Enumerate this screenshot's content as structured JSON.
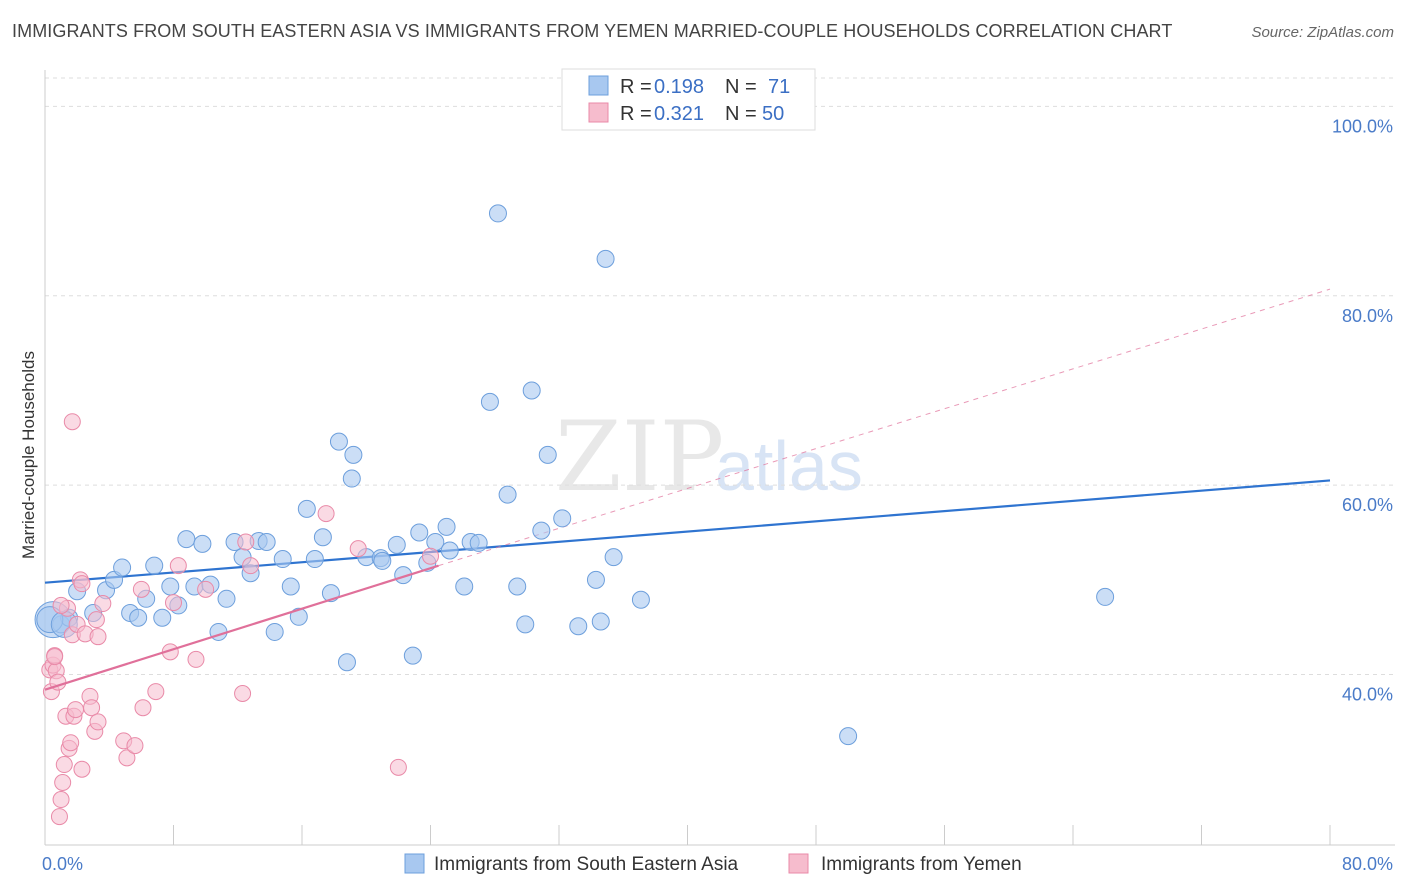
{
  "title": "IMMIGRANTS FROM SOUTH EASTERN ASIA VS IMMIGRANTS FROM YEMEN MARRIED-COUPLE HOUSEHOLDS CORRELATION CHART",
  "source": "Source: ZipAtlas.com",
  "watermark": {
    "zip": "ZIP",
    "atlas": "atlas"
  },
  "colors": {
    "blue_fill": "#a8c8f0",
    "blue_stroke": "#6d9fdc",
    "blue_line": "#2f74d0",
    "pink_fill": "#f6bccd",
    "pink_stroke": "#e98aa8",
    "pink_line": "#e0709a",
    "grid": "#dddddd",
    "tick_text": "#4a7bc8"
  },
  "legend": {
    "rows": [
      {
        "r_label": "R = ",
        "r_value": "0.198",
        "n_label": "N = ",
        "n_value": "71"
      },
      {
        "r_label": "R = ",
        "r_value": "0.321",
        "n_label": "N = ",
        "n_value": "50"
      }
    ]
  },
  "bottom_legend": [
    "Immigrants from South Eastern Asia",
    "Immigrants from Yemen"
  ],
  "chart_data": {
    "type": "scatter",
    "title": "IMMIGRANTS FROM SOUTH EASTERN ASIA VS IMMIGRANTS FROM YEMEN MARRIED-COUPLE HOUSEHOLDS CORRELATION CHART",
    "xlabel": "",
    "ylabel": "Married-couple Households",
    "xlim": [
      0,
      80
    ],
    "ylim": [
      22,
      103
    ],
    "x_tick_labels": [
      {
        "value": 0,
        "label": "0.0%"
      },
      {
        "value": 80,
        "label": "80.0%"
      }
    ],
    "y_tick_labels": [
      {
        "value": 100,
        "label": "100.0%"
      },
      {
        "value": 80,
        "label": "80.0%"
      },
      {
        "value": 60,
        "label": "60.0%"
      },
      {
        "value": 40,
        "label": "40.0%"
      }
    ],
    "series": [
      {
        "name": "Immigrants from South Eastern Asia",
        "R": 0.198,
        "N": 71,
        "trend": {
          "x": [
            0,
            80
          ],
          "y": [
            49.7,
            60.5
          ],
          "style": "solid"
        },
        "points": [
          [
            0.5,
            45.8
          ],
          [
            1.0,
            45.3
          ],
          [
            1.5,
            46.0
          ],
          [
            2.0,
            48.8
          ],
          [
            3.0,
            46.5
          ],
          [
            3.8,
            48.9
          ],
          [
            4.3,
            50.0
          ],
          [
            4.8,
            51.3
          ],
          [
            5.3,
            46.5
          ],
          [
            5.8,
            46.0
          ],
          [
            6.3,
            48.0
          ],
          [
            6.8,
            51.5
          ],
          [
            7.3,
            46.0
          ],
          [
            7.8,
            49.3
          ],
          [
            8.3,
            47.3
          ],
          [
            8.8,
            54.3
          ],
          [
            9.3,
            49.3
          ],
          [
            9.8,
            53.8
          ],
          [
            10.3,
            49.5
          ],
          [
            10.8,
            44.5
          ],
          [
            11.3,
            48.0
          ],
          [
            11.8,
            54.0
          ],
          [
            12.3,
            52.4
          ],
          [
            12.8,
            50.7
          ],
          [
            13.3,
            54.1
          ],
          [
            13.8,
            54.0
          ],
          [
            14.3,
            44.5
          ],
          [
            14.8,
            52.2
          ],
          [
            15.3,
            49.3
          ],
          [
            15.8,
            46.1
          ],
          [
            16.3,
            57.5
          ],
          [
            16.8,
            52.2
          ],
          [
            17.3,
            54.5
          ],
          [
            17.8,
            48.6
          ],
          [
            18.3,
            64.6
          ],
          [
            18.8,
            41.3
          ],
          [
            19.1,
            60.7
          ],
          [
            19.2,
            63.2
          ],
          [
            20.0,
            52.4
          ],
          [
            20.9,
            52.3
          ],
          [
            21.0,
            52.0
          ],
          [
            21.9,
            53.7
          ],
          [
            22.3,
            50.5
          ],
          [
            22.9,
            42.0
          ],
          [
            23.3,
            55.0
          ],
          [
            23.8,
            51.8
          ],
          [
            24.3,
            54.0
          ],
          [
            25.0,
            55.6
          ],
          [
            25.2,
            53.1
          ],
          [
            26.1,
            49.3
          ],
          [
            26.5,
            54.0
          ],
          [
            27.0,
            53.9
          ],
          [
            27.7,
            68.8
          ],
          [
            28.2,
            88.7
          ],
          [
            28.8,
            59.0
          ],
          [
            29.4,
            49.3
          ],
          [
            29.9,
            45.3
          ],
          [
            30.3,
            70.0
          ],
          [
            30.9,
            55.2
          ],
          [
            31.3,
            63.2
          ],
          [
            32.2,
            56.5
          ],
          [
            33.2,
            45.1
          ],
          [
            34.3,
            50.0
          ],
          [
            34.6,
            45.6
          ],
          [
            34.9,
            83.9
          ],
          [
            35.4,
            52.4
          ],
          [
            37.1,
            47.9
          ],
          [
            50.0,
            33.5
          ],
          [
            66.0,
            48.2
          ],
          [
            0.3,
            45.8
          ],
          [
            1.2,
            45.3
          ]
        ]
      },
      {
        "name": "Immigrants from Yemen",
        "R": 0.321,
        "N": 50,
        "trend": {
          "x": [
            0,
            24.5
          ],
          "y": [
            38.4,
            51.5
          ],
          "style": "solid",
          "extended": {
            "x": [
              24.5,
              80
            ],
            "y": [
              51.5,
              80.7
            ],
            "style": "dashed"
          }
        },
        "points": [
          [
            0.3,
            40.5
          ],
          [
            0.4,
            38.2
          ],
          [
            0.5,
            41.0
          ],
          [
            0.6,
            42.0
          ],
          [
            0.7,
            40.4
          ],
          [
            0.8,
            39.2
          ],
          [
            0.9,
            25.0
          ],
          [
            1.0,
            26.8
          ],
          [
            1.1,
            28.6
          ],
          [
            1.2,
            30.5
          ],
          [
            1.3,
            35.6
          ],
          [
            1.4,
            47.0
          ],
          [
            1.5,
            32.2
          ],
          [
            1.6,
            32.8
          ],
          [
            1.7,
            44.2
          ],
          [
            1.8,
            35.6
          ],
          [
            1.9,
            36.3
          ],
          [
            2.0,
            45.3
          ],
          [
            2.2,
            50.0
          ],
          [
            2.3,
            30.0
          ],
          [
            2.5,
            44.3
          ],
          [
            2.8,
            37.7
          ],
          [
            2.9,
            36.5
          ],
          [
            3.1,
            34.0
          ],
          [
            3.2,
            45.8
          ],
          [
            3.3,
            35.0
          ],
          [
            3.6,
            47.5
          ],
          [
            4.9,
            33.0
          ],
          [
            5.1,
            31.2
          ],
          [
            5.6,
            32.5
          ],
          [
            6.0,
            49.0
          ],
          [
            6.1,
            36.5
          ],
          [
            6.9,
            38.2
          ],
          [
            7.8,
            42.4
          ],
          [
            8.0,
            47.6
          ],
          [
            8.3,
            51.5
          ],
          [
            9.4,
            41.6
          ],
          [
            10.0,
            49.0
          ],
          [
            12.3,
            38.0
          ],
          [
            12.5,
            54.0
          ],
          [
            17.5,
            57.0
          ],
          [
            19.5,
            53.3
          ],
          [
            22.0,
            30.2
          ],
          [
            24.0,
            52.5
          ],
          [
            1.7,
            66.7
          ],
          [
            0.6,
            41.9
          ],
          [
            1.0,
            47.3
          ],
          [
            2.3,
            49.6
          ],
          [
            3.3,
            44.0
          ],
          [
            12.8,
            51.5
          ]
        ]
      }
    ]
  }
}
